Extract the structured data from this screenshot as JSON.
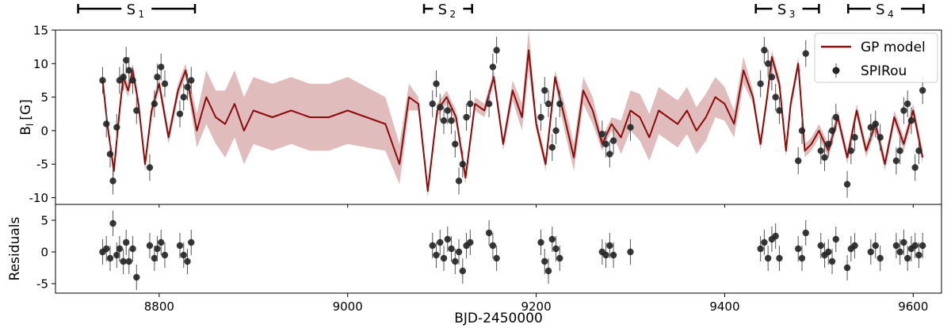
{
  "chart_data": [
    {
      "type": "line",
      "panel": "top",
      "ylabel": "B_l [G]",
      "ylabel_main": "B",
      "ylabel_sub": "l",
      "ylabel_unit": "[G]",
      "xlim": [
        8690,
        9630
      ],
      "ylim": [
        -11,
        15
      ],
      "x_ticks": [
        8800,
        9000,
        9200,
        9400,
        9600
      ],
      "y_ticks": [
        -10,
        -5,
        0,
        5,
        10,
        15
      ],
      "legend": {
        "position": "top-right",
        "model_label": "GP model",
        "data_label": "SPIRou"
      },
      "colors": {
        "model": "#8b0a0a",
        "band": "#d7a6a6",
        "points": "#222222"
      },
      "gp_model": {
        "x": [
          8740,
          8745,
          8752,
          8758,
          8762,
          8767,
          8772,
          8778,
          8785,
          8792,
          8800,
          8810,
          8820,
          8828,
          8840,
          8850,
          8860,
          8870,
          8880,
          8890,
          8900,
          8920,
          8940,
          8960,
          8980,
          9000,
          9020,
          9040,
          9055,
          9065,
          9075,
          9085,
          9095,
          9105,
          9115,
          9125,
          9135,
          9145,
          9155,
          9165,
          9175,
          9185,
          9192,
          9200,
          9210,
          9220,
          9230,
          9240,
          9250,
          9260,
          9270,
          9280,
          9290,
          9300,
          9310,
          9320,
          9330,
          9340,
          9350,
          9360,
          9370,
          9380,
          9390,
          9400,
          9410,
          9420,
          9430,
          9438,
          9445,
          9450,
          9458,
          9465,
          9470,
          9478,
          9485,
          9492,
          9500,
          9510,
          9520,
          9530,
          9540,
          9550,
          9560,
          9570,
          9580,
          9590,
          9600,
          9610
        ],
        "y": [
          7.5,
          1,
          -6,
          3,
          8,
          6,
          9,
          4,
          -5,
          3,
          7,
          -1,
          6,
          9,
          0,
          5,
          2,
          1,
          4,
          0,
          3,
          2,
          3,
          2,
          2,
          3,
          2,
          1,
          -5,
          5,
          4,
          -9,
          3,
          5,
          2,
          -7,
          4,
          3,
          8,
          -2,
          6,
          2,
          12,
          1,
          -5,
          8,
          2,
          -4,
          6,
          3,
          -2,
          1,
          -1,
          3,
          2,
          -1,
          3,
          2,
          1,
          3,
          0,
          2,
          5,
          4,
          1,
          9,
          5,
          -2,
          5,
          11,
          7,
          -3,
          4,
          10,
          -3,
          -2,
          0,
          -3,
          2,
          -4,
          3,
          -3,
          1,
          -5,
          2,
          -2,
          3,
          -4
        ],
        "band_halfwidth": [
          0.5,
          1,
          1,
          1,
          1,
          1,
          1,
          1,
          1,
          1,
          1,
          1,
          1,
          1,
          2.5,
          4,
          4,
          5,
          5,
          5,
          5,
          5,
          5,
          5,
          5,
          5,
          4.5,
          4,
          3,
          2,
          1,
          1,
          1,
          1,
          1,
          1,
          1,
          1,
          1,
          1,
          1.5,
          2,
          3,
          1,
          1,
          1,
          2,
          2,
          2,
          2,
          1,
          1,
          2.5,
          3,
          3.5,
          3.5,
          3.5,
          3.5,
          3.5,
          3.5,
          3.5,
          3.5,
          3,
          2.5,
          2,
          2,
          1,
          1,
          1,
          1,
          1,
          1,
          1,
          1,
          1,
          1,
          1,
          1,
          1,
          1,
          1,
          1,
          1,
          1,
          1,
          1,
          1,
          1
        ]
      },
      "spirou": {
        "x": [
          8740,
          8744,
          8748,
          8751,
          8755,
          8758,
          8762,
          8765,
          8768,
          8772,
          8776,
          8790,
          8795,
          8798,
          8802,
          8806,
          8822,
          8826,
          8830,
          8834,
          9090,
          9094,
          9098,
          9102,
          9106,
          9110,
          9114,
          9118,
          9122,
          9126,
          9130,
          9150,
          9154,
          9158,
          9205,
          9209,
          9213,
          9217,
          9221,
          9225,
          9270,
          9274,
          9278,
          9282,
          9300,
          9438,
          9442,
          9446,
          9450,
          9454,
          9458,
          9478,
          9482,
          9486,
          9502,
          9506,
          9510,
          9514,
          9518,
          9530,
          9534,
          9538,
          9555,
          9560,
          9565,
          9582,
          9586,
          9590,
          9594,
          9598,
          9602,
          9606,
          9610
        ],
        "y": [
          7.5,
          1,
          -3.5,
          -7.5,
          0.5,
          7.5,
          8,
          10.5,
          9,
          7.5,
          3,
          -5.5,
          4,
          8,
          9.5,
          7,
          2.5,
          5,
          6.5,
          7.5,
          4,
          7,
          3.5,
          1.5,
          3,
          1.5,
          -2,
          -7.5,
          -5,
          2,
          4,
          4,
          9.5,
          12,
          2,
          6,
          4,
          -2.5,
          0,
          4,
          -0.5,
          -2,
          -3.5,
          -1.5,
          0.5,
          7,
          12,
          10,
          8,
          5,
          3,
          -4.5,
          0,
          11.5,
          -3,
          -4,
          -2,
          0,
          2,
          -8,
          -3,
          -1,
          0.5,
          1,
          -1,
          -4.5,
          -3,
          3,
          4,
          1.5,
          -5.5,
          -3,
          6
        ]
      }
    },
    {
      "type": "scatter",
      "panel": "bottom",
      "ylabel": "Residuals",
      "xlabel": "BJD-2450000",
      "xlim": [
        8690,
        9630
      ],
      "ylim": [
        -6.5,
        7.5
      ],
      "y_ticks": [
        -5,
        0,
        5
      ],
      "x_ticks": [
        8800,
        9000,
        9200,
        9400,
        9600
      ],
      "x": [
        8740,
        8744,
        8748,
        8751,
        8755,
        8758,
        8762,
        8765,
        8768,
        8772,
        8776,
        8790,
        8795,
        8798,
        8802,
        8806,
        8822,
        8826,
        8830,
        8834,
        9090,
        9094,
        9098,
        9102,
        9106,
        9110,
        9114,
        9118,
        9122,
        9126,
        9130,
        9150,
        9154,
        9158,
        9205,
        9209,
        9213,
        9217,
        9221,
        9225,
        9270,
        9274,
        9278,
        9282,
        9300,
        9438,
        9442,
        9446,
        9450,
        9454,
        9458,
        9478,
        9482,
        9486,
        9502,
        9506,
        9510,
        9514,
        9518,
        9530,
        9534,
        9538,
        9555,
        9560,
        9565,
        9582,
        9586,
        9590,
        9594,
        9598,
        9602,
        9606,
        9610
      ],
      "y": [
        0,
        0.5,
        -1,
        4.5,
        -0.5,
        0.5,
        -1.5,
        1.5,
        -1.5,
        0.5,
        -4,
        1,
        -1,
        0.5,
        1.5,
        -0.5,
        1,
        -0.5,
        -1.5,
        1.5,
        1,
        -0.5,
        1.5,
        -1,
        2,
        0.5,
        -1.5,
        0,
        -3,
        1,
        1.5,
        3,
        1,
        -1,
        1.5,
        -1.5,
        -3,
        2,
        0.5,
        -1,
        0,
        -0.5,
        1,
        -0.5,
        0,
        0.5,
        1.5,
        -1,
        2,
        2.5,
        -1,
        0.5,
        -1,
        3,
        1,
        -0.5,
        0,
        -1.5,
        2,
        -2.5,
        0.5,
        1,
        0,
        1,
        -1,
        1,
        0,
        1.5,
        -1,
        0.5,
        1,
        -0.5,
        1
      ]
    }
  ],
  "season_bars": [
    {
      "label": "S",
      "sub": "1",
      "start": 8714,
      "end": 8838
    },
    {
      "label": "S",
      "sub": "2",
      "start": 9081,
      "end": 9132
    },
    {
      "label": "S",
      "sub": "3",
      "start": 9433,
      "end": 9500
    },
    {
      "label": "S",
      "sub": "4",
      "start": 9531,
      "end": 9611
    }
  ]
}
